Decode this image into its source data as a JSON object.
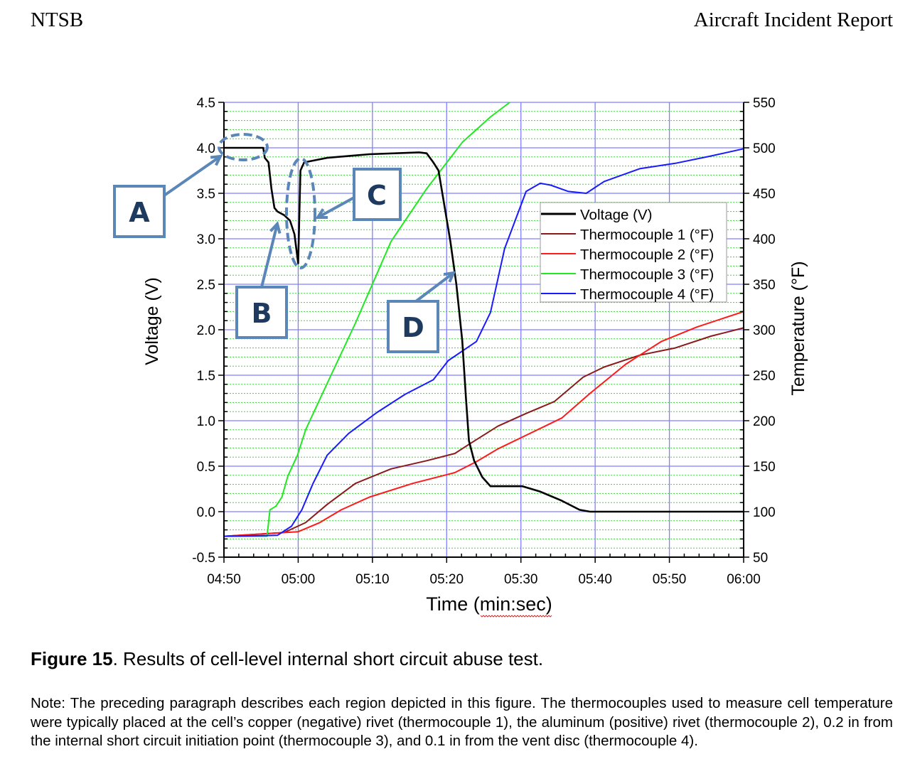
{
  "header": {
    "left": "NTSB",
    "right": "Aircraft Incident Report"
  },
  "caption": {
    "label": "Figure 15",
    "text": ". Results of cell-level internal short circuit abuse test."
  },
  "note": "Note: The preceding paragraph describes each region depicted in this figure. The thermocouples used to measure cell temperature were typically placed at the cell’s copper (negative) rivet (thermocouple 1), the aluminum (positive) rivet (thermocouple 2), 0.2 in from the internal short circuit initiation point (thermocouple 3), and 0.1 in from the vent disc (thermocouple 4).",
  "chart_data": {
    "type": "line",
    "xlabel": "Time (min:sec)",
    "ylabel": "Voltage (V)",
    "y2label": "Temperature (°F)",
    "xlim": [
      "04:50",
      "06:00"
    ],
    "ylim": [
      -0.5,
      4.5
    ],
    "y2lim": [
      50,
      550
    ],
    "xticks": [
      "04:50",
      "05:00",
      "05:10",
      "05:20",
      "05:30",
      "05:40",
      "05:50",
      "06:00"
    ],
    "yticks": [
      "-0.5",
      "0.0",
      "0.5",
      "1.0",
      "1.5",
      "2.0",
      "2.5",
      "3.0",
      "3.5",
      "4.0",
      "4.5"
    ],
    "y2ticks": [
      "50",
      "100",
      "150",
      "200",
      "250",
      "300",
      "350",
      "400",
      "450",
      "500",
      "550"
    ],
    "grid": true,
    "legend_position": "center-right",
    "series": [
      {
        "name": "Voltage (V)",
        "axis": "left",
        "color": "#000000",
        "points": [
          [
            "04:50",
            4.0
          ],
          [
            "04:55.3",
            4.0
          ],
          [
            "04:55.5",
            3.89
          ],
          [
            "04:56",
            3.84
          ],
          [
            "04:56.4",
            3.55
          ],
          [
            "04:56.8",
            3.34
          ],
          [
            "04:57.2",
            3.3
          ],
          [
            "04:58.1",
            3.26
          ],
          [
            "04:58.9",
            3.2
          ],
          [
            "04:59.5",
            3.05
          ],
          [
            "05:00",
            2.73
          ],
          [
            "05:00.3",
            3.75
          ],
          [
            "05:00.8",
            3.84
          ],
          [
            "05:03.9",
            3.89
          ],
          [
            "05:09.6",
            3.93
          ],
          [
            "05:16.3",
            3.95
          ],
          [
            "05:17.3",
            3.94
          ],
          [
            "05:18.2",
            3.84
          ],
          [
            "05:18.9",
            3.75
          ],
          [
            "05:19.7",
            3.36
          ],
          [
            "05:20.5",
            2.97
          ],
          [
            "05:21.3",
            2.5
          ],
          [
            "05:22.1",
            1.88
          ],
          [
            "05:22.6",
            1.25
          ],
          [
            "05:23",
            0.78
          ],
          [
            "05:23.7",
            0.56
          ],
          [
            "05:24.8",
            0.38
          ],
          [
            "05:25.9",
            0.28
          ],
          [
            "05:30.2",
            0.28
          ],
          [
            "05:32.6",
            0.22
          ],
          [
            "05:35.5",
            0.12
          ],
          [
            "05:37.9",
            0.02
          ],
          [
            "05:39.3",
            0.0
          ],
          [
            "06:00",
            0.0
          ]
        ]
      },
      {
        "name": "Thermocouple 1 (°F)",
        "axis": "right",
        "color": "#8b1a1a",
        "points": [
          [
            "04:50",
            73
          ],
          [
            "04:58.1",
            77
          ],
          [
            "05:01",
            88
          ],
          [
            "05:03.9",
            108
          ],
          [
            "05:07.7",
            131
          ],
          [
            "05:12.5",
            147
          ],
          [
            "05:17.3",
            156
          ],
          [
            "05:21.1",
            164
          ],
          [
            "05:23",
            174
          ],
          [
            "05:26.9",
            194
          ],
          [
            "05:30.7",
            208
          ],
          [
            "05:34.5",
            221
          ],
          [
            "05:38.4",
            248
          ],
          [
            "05:41.2",
            259
          ],
          [
            "05:46",
            272
          ],
          [
            "05:50.8",
            280
          ],
          [
            "05:55.6",
            293
          ],
          [
            "06:00",
            302
          ]
        ]
      },
      {
        "name": "Thermocouple 2 (°F)",
        "axis": "right",
        "color": "#ff1a1a",
        "points": [
          [
            "04:50",
            73
          ],
          [
            "05:00",
            78
          ],
          [
            "05:02.9",
            88
          ],
          [
            "05:05.8",
            102
          ],
          [
            "05:09.6",
            116
          ],
          [
            "05:15.4",
            131
          ],
          [
            "05:21.1",
            143
          ],
          [
            "05:24",
            155
          ],
          [
            "05:26.9",
            169
          ],
          [
            "05:30.7",
            184
          ],
          [
            "05:35.5",
            203
          ],
          [
            "05:39.3",
            230
          ],
          [
            "05:44.1",
            262
          ],
          [
            "05:48.9",
            287
          ],
          [
            "05:53.7",
            303
          ],
          [
            "06:00",
            320
          ]
        ]
      },
      {
        "name": "Thermocouple 3 (°F)",
        "axis": "right",
        "color": "#22e822",
        "points": [
          [
            "04:50",
            73
          ],
          [
            "04:55.8",
            73
          ],
          [
            "04:56.2",
            102
          ],
          [
            "04:57",
            106
          ],
          [
            "04:57.8",
            116
          ],
          [
            "04:58.6",
            139
          ],
          [
            "04:59.9",
            162
          ],
          [
            "05:01",
            190
          ],
          [
            "05:03.9",
            241
          ],
          [
            "05:07.7",
            307
          ],
          [
            "05:12.5",
            397
          ],
          [
            "05:17.3",
            455
          ],
          [
            "05:22.1",
            506
          ],
          [
            "05:25.9",
            534
          ],
          [
            "05:28.5",
            550
          ]
        ]
      },
      {
        "name": "Thermocouple 4 (°F)",
        "axis": "right",
        "color": "#1a1aff",
        "points": [
          [
            "04:50",
            73
          ],
          [
            "04:57.2",
            74
          ],
          [
            "04:59.1",
            84
          ],
          [
            "05:00.5",
            102
          ],
          [
            "05:02",
            131
          ],
          [
            "05:03.9",
            162
          ],
          [
            "05:06.8",
            186
          ],
          [
            "05:10.6",
            209
          ],
          [
            "05:14.4",
            229
          ],
          [
            "05:18.2",
            245
          ],
          [
            "05:20.2",
            266
          ],
          [
            "05:24",
            287
          ],
          [
            "05:25.9",
            319
          ],
          [
            "05:27.8",
            389
          ],
          [
            "05:30.7",
            452
          ],
          [
            "05:32.6",
            461
          ],
          [
            "05:34",
            459
          ],
          [
            "05:36.4",
            452
          ],
          [
            "05:38.8",
            450
          ],
          [
            "05:41.2",
            463
          ],
          [
            "05:46",
            477
          ],
          [
            "05:50.8",
            483
          ],
          [
            "05:55.6",
            491
          ],
          [
            "06:00",
            499
          ]
        ]
      }
    ],
    "annotations": [
      "A",
      "B",
      "C",
      "D"
    ],
    "annotation_color": "#5b86b8"
  }
}
